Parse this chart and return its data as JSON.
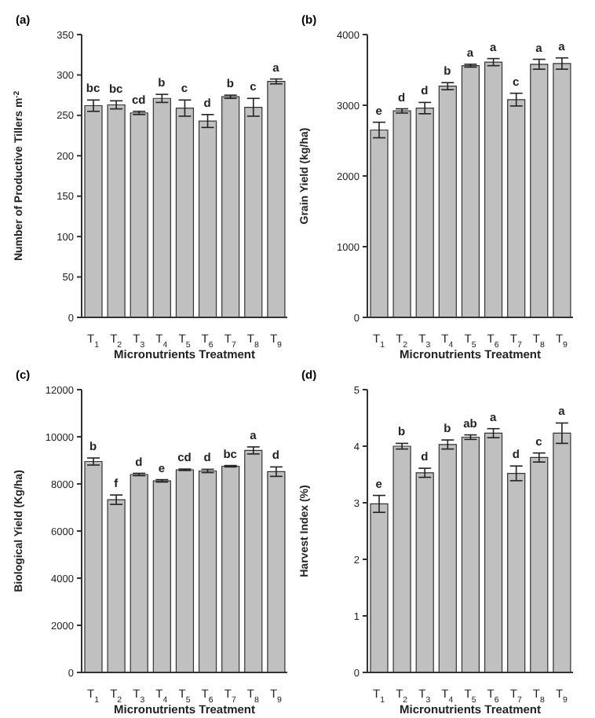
{
  "chart_data": [
    {
      "type": "bar",
      "title": "(a)",
      "xlabel": "Micronutrients Treatment",
      "ylabel": "Number of Productive Tillers m$^{-2}$",
      "categories": [
        "T$_{1}$",
        "T$_{2}$",
        "T$_{3}$",
        "T$_{4}$",
        "T$_{5}$",
        "T$_{6}$",
        "T$_{7}$",
        "T$_{8}$",
        "T$_{9}$"
      ],
      "values": [
        262,
        263,
        253,
        271,
        259,
        243,
        273,
        260,
        292
      ],
      "errors": [
        7,
        5,
        2,
        5,
        10,
        8,
        2,
        11,
        3
      ],
      "color": "#c0c0c0",
      "ylim": [
        0,
        350
      ],
      "yticks": [
        0,
        50,
        100,
        150,
        200,
        250,
        300,
        350
      ],
      "annotations": [
        {
          "text": "bc",
          "x": "T$_{1}$",
          "y": 269
        },
        {
          "text": "bc",
          "x": "T$_{2}$",
          "y": 268
        },
        {
          "text": "cd",
          "x": "T$_{3}$",
          "y": 255
        },
        {
          "text": "b",
          "x": "T$_{4}$",
          "y": 276
        },
        {
          "text": "c",
          "x": "T$_{5}$",
          "y": 269
        },
        {
          "text": "d",
          "x": "T$_{6}$",
          "y": 251
        },
        {
          "text": "b",
          "x": "T$_{7}$",
          "y": 275
        },
        {
          "text": "c",
          "x": "T$_{8}$",
          "y": 271
        },
        {
          "text": "a",
          "x": "T$_{9}$",
          "y": 295
        }
      ]
    },
    {
      "type": "bar",
      "title": "(b)",
      "xlabel": "Micronutrients Treatment",
      "ylabel": "Grain Yield (kg/ha)",
      "categories": [
        "T$_{1}$",
        "T$_{2}$",
        "T$_{3}$",
        "T$_{4}$",
        "T$_{5}$",
        "T$_{6}$",
        "T$_{7}$",
        "T$_{8}$",
        "T$_{9}$"
      ],
      "values": [
        2650,
        2920,
        2960,
        3270,
        3560,
        3610,
        3080,
        3580,
        3590
      ],
      "errors": [
        110,
        30,
        80,
        50,
        20,
        50,
        90,
        70,
        80
      ],
      "color": "#c0c0c0",
      "ylim": [
        0,
        4000
      ],
      "yticks": [
        0,
        1000,
        2000,
        3000,
        4000
      ],
      "annotations": [
        {
          "text": "e",
          "x": "T$_{1}$",
          "y": 2760
        },
        {
          "text": "d",
          "x": "T$_{2}$",
          "y": 2950
        },
        {
          "text": "d",
          "x": "T$_{3}$",
          "y": 3040
        },
        {
          "text": "b",
          "x": "T$_{4}$",
          "y": 3320
        },
        {
          "text": "a",
          "x": "T$_{5}$",
          "y": 3580
        },
        {
          "text": "a",
          "x": "T$_{6}$",
          "y": 3660
        },
        {
          "text": "c",
          "x": "T$_{7}$",
          "y": 3170
        },
        {
          "text": "a",
          "x": "T$_{8}$",
          "y": 3650
        },
        {
          "text": "a",
          "x": "T$_{9}$",
          "y": 3670
        }
      ]
    },
    {
      "type": "bar",
      "title": "(c)",
      "xlabel": "Micronutrients Treatment",
      "ylabel": "Biological Yield (Kg/ha)",
      "categories": [
        "T$_{1}$",
        "T$_{2}$",
        "T$_{3}$",
        "T$_{4}$",
        "T$_{5}$",
        "T$_{6}$",
        "T$_{7}$",
        "T$_{8}$",
        "T$_{9}$"
      ],
      "values": [
        8950,
        7330,
        8400,
        8130,
        8600,
        8550,
        8750,
        9420,
        8520
      ],
      "errors": [
        150,
        200,
        50,
        50,
        30,
        70,
        30,
        150,
        200
      ],
      "color": "#c0c0c0",
      "ylim": [
        0,
        12000
      ],
      "yticks": [
        0,
        2000,
        4000,
        6000,
        8000,
        10000,
        12000
      ],
      "annotations": [
        {
          "text": "b",
          "x": "T$_{1}$",
          "y": 9100
        },
        {
          "text": "f",
          "x": "T$_{2}$",
          "y": 7530
        },
        {
          "text": "d",
          "x": "T$_{3}$",
          "y": 8450
        },
        {
          "text": "e",
          "x": "T$_{4}$",
          "y": 8180
        },
        {
          "text": "cd",
          "x": "T$_{5}$",
          "y": 8630
        },
        {
          "text": "d",
          "x": "T$_{6}$",
          "y": 8620
        },
        {
          "text": "bc",
          "x": "T$_{7}$",
          "y": 8780
        },
        {
          "text": "a",
          "x": "T$_{8}$",
          "y": 9570
        },
        {
          "text": "d",
          "x": "T$_{9}$",
          "y": 8720
        }
      ]
    },
    {
      "type": "bar",
      "title": "(d)",
      "xlabel": "Micronutrients Treatment",
      "ylabel": "Harvest Index (%)",
      "categories": [
        "T$_{1}$",
        "T$_{2}$",
        "T$_{3}$",
        "T$_{4}$",
        "T$_{5}$",
        "T$_{6}$",
        "T$_{7}$",
        "T$_{8}$",
        "T$_{9}$"
      ],
      "values": [
        2.98,
        4.0,
        3.53,
        4.03,
        4.16,
        4.23,
        3.52,
        3.8,
        4.23
      ],
      "errors": [
        0.15,
        0.05,
        0.08,
        0.08,
        0.04,
        0.08,
        0.13,
        0.08,
        0.18
      ],
      "color": "#c0c0c0",
      "ylim": [
        0,
        5
      ],
      "yticks": [
        0,
        1,
        2,
        3,
        4,
        5
      ],
      "annotations": [
        {
          "text": "e",
          "x": "T$_{1}$",
          "y": 3.13
        },
        {
          "text": "b",
          "x": "T$_{2}$",
          "y": 4.05
        },
        {
          "text": "d",
          "x": "T$_{3}$",
          "y": 3.61
        },
        {
          "text": "b",
          "x": "T$_{4}$",
          "y": 4.11
        },
        {
          "text": "ab",
          "x": "T$_{5}$",
          "y": 4.2
        },
        {
          "text": "a",
          "x": "T$_{6}$",
          "y": 4.31
        },
        {
          "text": "d",
          "x": "T$_{7}$",
          "y": 3.65
        },
        {
          "text": "c",
          "x": "T$_{8}$",
          "y": 3.88
        },
        {
          "text": "a",
          "x": "T$_{9}$",
          "y": 4.41
        }
      ]
    }
  ]
}
